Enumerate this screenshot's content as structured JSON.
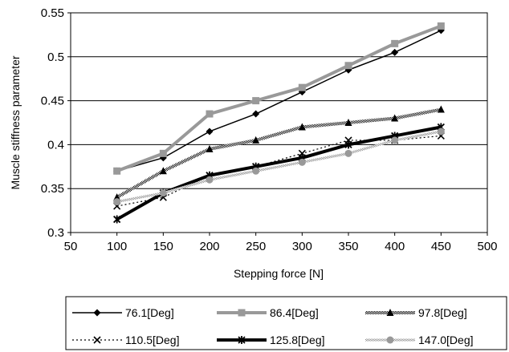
{
  "chart_data": {
    "type": "line",
    "title": "",
    "xlabel": "Stepping force [N]",
    "ylabel": "Muscle stiffness parameter",
    "xlim": [
      50,
      500
    ],
    "ylim": [
      0.3,
      0.55
    ],
    "x_ticks": [
      "50",
      "100",
      "150",
      "200",
      "250",
      "300",
      "350",
      "400",
      "450",
      "500"
    ],
    "y_ticks": [
      "0.3",
      "0.35",
      "0.4",
      "0.45",
      "0.5",
      "0.55"
    ],
    "grid": "horizontal",
    "legend_position": "bottom",
    "x": [
      100,
      150,
      200,
      250,
      300,
      350,
      400,
      450
    ],
    "series": [
      {
        "name": "76.1[Deg]",
        "color": "#000000",
        "marker": "diamond",
        "line": "solid-thin",
        "values": [
          0.37,
          0.385,
          0.415,
          0.435,
          0.46,
          0.485,
          0.505,
          0.53
        ]
      },
      {
        "name": "86.4[Deg]",
        "color": "#999999",
        "marker": "square",
        "line": "solid-thick",
        "values": [
          0.37,
          0.39,
          0.435,
          0.45,
          0.465,
          0.49,
          0.515,
          0.535
        ]
      },
      {
        "name": "97.8[Deg]",
        "color": "#000000",
        "marker": "triangle",
        "line": "checkered-thick",
        "values": [
          0.34,
          0.37,
          0.395,
          0.405,
          0.42,
          0.425,
          0.43,
          0.44
        ]
      },
      {
        "name": "110.5[Deg]",
        "color": "#000000",
        "marker": "x",
        "line": "dotted",
        "values": [
          0.33,
          0.34,
          0.365,
          0.375,
          0.39,
          0.405,
          0.405,
          0.41
        ]
      },
      {
        "name": "125.8[Deg]",
        "color": "#000000",
        "marker": "asterisk",
        "line": "solid-heavy",
        "values": [
          0.315,
          0.345,
          0.365,
          0.375,
          0.385,
          0.4,
          0.41,
          0.42
        ]
      },
      {
        "name": "147.0[Deg]",
        "color": "#999999",
        "marker": "circle",
        "line": "checkered-thin",
        "values": [
          0.335,
          0.345,
          0.36,
          0.37,
          0.38,
          0.39,
          0.405,
          0.415
        ]
      }
    ]
  }
}
